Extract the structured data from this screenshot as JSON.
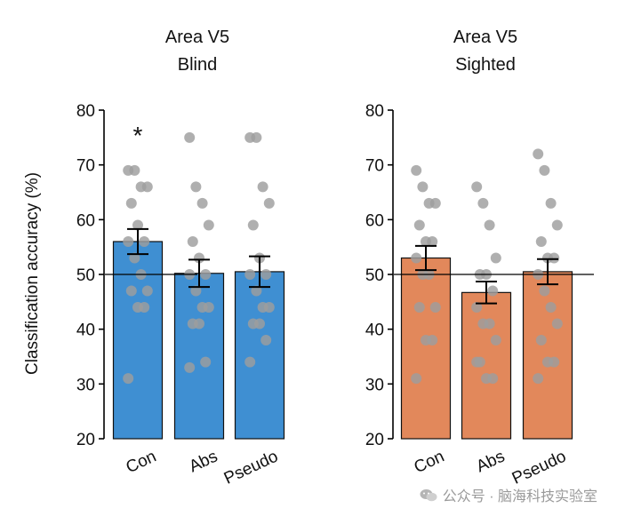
{
  "chart_data": [
    {
      "type": "bar",
      "title": [
        "Area V5",
        "Blind"
      ],
      "ylabel": "Classification accuracy (%)",
      "ylim": [
        20,
        80
      ],
      "yticks": [
        20,
        30,
        40,
        50,
        60,
        70,
        80
      ],
      "chance": 50,
      "color": "#3f8fd2",
      "categories": [
        "Con",
        "Abs",
        "Pseudo"
      ],
      "values": [
        56,
        50.2,
        50.5
      ],
      "errors": [
        2.3,
        2.5,
        2.8
      ],
      "significance": [
        "*",
        "",
        ""
      ],
      "points": [
        [
          69,
          69,
          66,
          66,
          63,
          59,
          56,
          56,
          53,
          50,
          47,
          47,
          44,
          44,
          31
        ],
        [
          75,
          66,
          63,
          59,
          56,
          53,
          50,
          50,
          47,
          44,
          44,
          41,
          41,
          34,
          33
        ],
        [
          75,
          75,
          66,
          63,
          59,
          53,
          50,
          50,
          47,
          44,
          44,
          41,
          41,
          38,
          34
        ]
      ]
    },
    {
      "type": "bar",
      "title": [
        "Area V5",
        "Sighted"
      ],
      "ylabel": "",
      "ylim": [
        20,
        80
      ],
      "yticks": [
        20,
        30,
        40,
        50,
        60,
        70,
        80
      ],
      "chance": 50,
      "color": "#e2885b",
      "categories": [
        "Con",
        "Abs",
        "Pseudo"
      ],
      "values": [
        53,
        46.7,
        50.5
      ],
      "errors": [
        2.2,
        2.0,
        2.3
      ],
      "significance": [
        "",
        "",
        ""
      ],
      "points": [
        [
          69,
          66,
          63,
          63,
          59,
          56,
          56,
          53,
          50,
          50,
          44,
          44,
          38,
          38,
          31
        ],
        [
          66,
          63,
          59,
          53,
          50,
          50,
          47,
          44,
          41,
          41,
          38,
          34,
          31,
          31,
          34
        ],
        [
          72,
          69,
          63,
          59,
          56,
          53,
          53,
          50,
          47,
          44,
          41,
          38,
          34,
          34,
          31
        ]
      ]
    }
  ],
  "watermark": "公众号 · 脑海科技实验室"
}
